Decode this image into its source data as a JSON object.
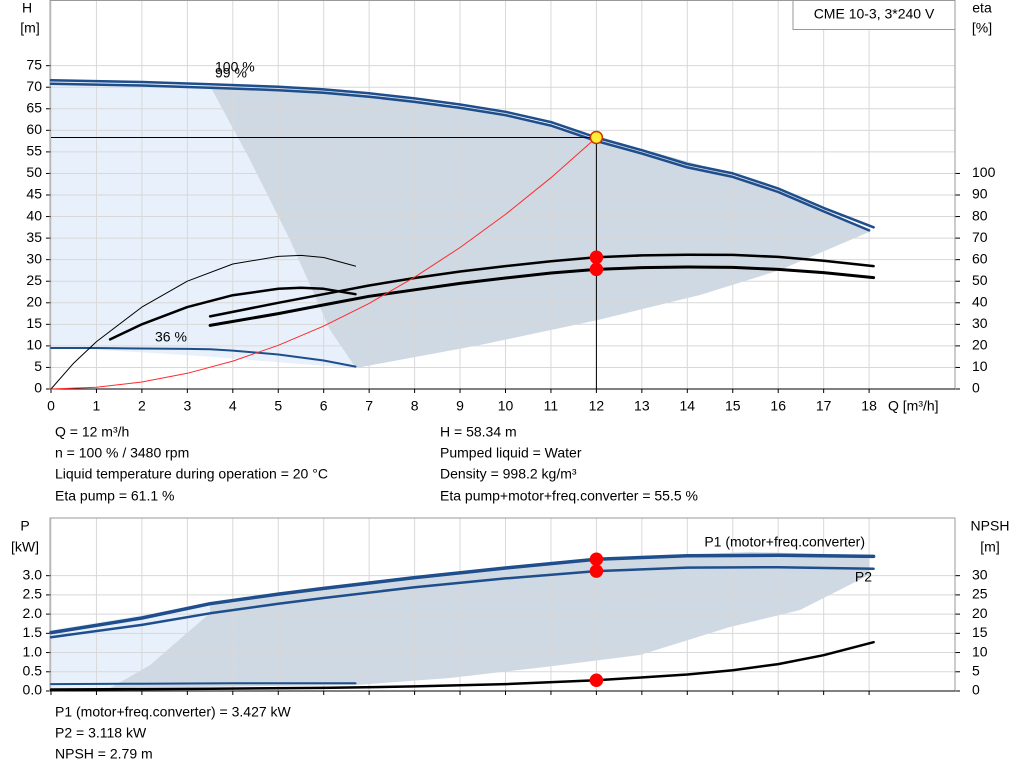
{
  "chart_data": [
    {
      "type": "line",
      "title": "CME 10-3, 3*240 V",
      "ylabel": [
        "H",
        "[m]"
      ],
      "y2label": [
        "eta",
        "[%]"
      ],
      "xlabel": "Q [m³/h]",
      "xlim": [
        0,
        20
      ],
      "xticks": [
        0,
        1,
        2,
        3,
        4,
        5,
        6,
        7,
        8,
        9,
        10,
        11,
        12,
        13,
        14,
        15,
        16,
        17,
        18
      ],
      "ylim": [
        0,
        90
      ],
      "yticks": [
        0,
        5,
        10,
        15,
        20,
        25,
        30,
        35,
        40,
        45,
        50,
        55,
        60,
        65,
        70,
        75
      ],
      "y2lim": [
        0,
        180
      ],
      "y2ticks": [
        0,
        10,
        20,
        30,
        40,
        50,
        60,
        70,
        80,
        90,
        100
      ],
      "grid": true,
      "series": [
        {
          "name": "100 %",
          "color": "#1f4e8c",
          "linewidth": 2.5,
          "x": [
            0,
            2,
            3.5,
            5,
            6,
            7,
            8,
            9,
            10,
            11,
            12,
            13,
            14,
            15,
            16,
            17,
            18.1
          ],
          "values": [
            71.6,
            71.2,
            70.7,
            70.1,
            69.5,
            68.6,
            67.4,
            66.0,
            64.3,
            61.9,
            58.34,
            55.4,
            52.2,
            50.0,
            46.5,
            42.0,
            37.5
          ]
        },
        {
          "name": "99 %",
          "color": "#1f4e8c",
          "linewidth": 2.5,
          "x": [
            0,
            2,
            3.5,
            5,
            6,
            7,
            8,
            9,
            10,
            11,
            12,
            13,
            14,
            15,
            16,
            17,
            18
          ],
          "values": [
            70.8,
            70.4,
            69.9,
            69.3,
            68.7,
            67.8,
            66.6,
            65.2,
            63.5,
            61.1,
            57.5,
            54.6,
            51.4,
            49.2,
            45.7,
            41.2,
            36.8
          ]
        },
        {
          "name": "36 %",
          "color": "#1f4e8c",
          "linewidth": 2,
          "x": [
            0,
            1,
            2,
            3,
            3.5,
            4,
            5,
            6,
            6.7
          ],
          "values": [
            9.5,
            9.5,
            9.4,
            9.3,
            9.2,
            8.9,
            8.0,
            6.6,
            5.2
          ]
        },
        {
          "color": "#000000",
          "linewidth": 2.5,
          "axis": "y2",
          "x": [
            3.5,
            5,
            6,
            7,
            8,
            9,
            10,
            11,
            12,
            13,
            14,
            15,
            16,
            17,
            18.1
          ],
          "values": [
            33.7,
            40,
            44,
            48,
            51.5,
            54.5,
            57,
            59.3,
            61.1,
            62,
            62.3,
            62.2,
            61.3,
            59.5,
            57
          ]
        },
        {
          "color": "#000000",
          "linewidth": 3,
          "axis": "y2",
          "x": [
            3.5,
            5,
            6,
            7,
            8,
            9,
            10,
            11,
            12,
            13,
            14,
            15,
            16,
            17,
            18.1
          ],
          "values": [
            29.5,
            35,
            39,
            43,
            46,
            49,
            51.5,
            53.8,
            55.5,
            56.3,
            56.6,
            56.4,
            55.5,
            54,
            51.7
          ]
        },
        {
          "color": "#000000",
          "linewidth": 1,
          "axis": "y2",
          "x": [
            0,
            0.5,
            1,
            2,
            3,
            4,
            5,
            5.5,
            6,
            6.7
          ],
          "values": [
            0,
            12,
            22,
            38,
            50,
            58,
            61.5,
            62,
            61,
            57
          ]
        },
        {
          "color": "#000000",
          "linewidth": 2.5,
          "axis": "y2",
          "x": [
            1.3,
            2,
            3,
            4,
            5,
            5.5,
            6,
            6.7
          ],
          "values": [
            23,
            30,
            38,
            43.5,
            46.5,
            47,
            46.5,
            44
          ]
        },
        {
          "color": "#ff2a2a",
          "linewidth": 1,
          "x": [
            0,
            1,
            2,
            3,
            4,
            5,
            6,
            7,
            8,
            9,
            10,
            11,
            12
          ],
          "values": [
            0,
            0.41,
            1.62,
            3.65,
            6.48,
            10.13,
            14.59,
            19.85,
            25.93,
            32.82,
            40.51,
            49.02,
            58.34
          ]
        },
        {
          "color": "#ffee33",
          "edgecolor": "#d03000",
          "marker": "dot",
          "guides": true,
          "x": [
            12
          ],
          "values": [
            58.34
          ]
        },
        {
          "color": "#ff0000",
          "marker": "dot",
          "axis": "y2",
          "x": [
            12,
            12
          ],
          "values": [
            61.1,
            55.5
          ]
        }
      ],
      "annotations": [
        "Q = 12 m³/h",
        "n = 100 % / 3480 rpm",
        "Liquid temperature during operation = 20 °C",
        "Eta pump = 61.1 %",
        "H = 58.34 m",
        "Pumped liquid = Water",
        "Density = 998.2 kg/m³",
        "Eta pump+motor+freq.converter = 55.5 %"
      ]
    },
    {
      "type": "line",
      "ylabel": [
        "P",
        "[kW]"
      ],
      "y2label": [
        "NPSH",
        "[m]"
      ],
      "xlim": [
        0,
        20
      ],
      "ylim": [
        0,
        4.5
      ],
      "yticks": [
        {
          "value": 0,
          "label": "0.0"
        },
        0.5,
        {
          "value": 1,
          "label": "1.0"
        },
        1.5,
        {
          "value": 2,
          "label": "2.0"
        },
        2.5,
        {
          "value": 3,
          "label": "3.0"
        }
      ],
      "y2lim": [
        0,
        45
      ],
      "y2ticks": [
        0,
        5,
        10,
        15,
        20,
        25,
        30
      ],
      "grid": true,
      "series": [
        {
          "name": "P1 (motor+freq.converter)",
          "color": "#1f4e8c",
          "linewidth": 3.5,
          "x": [
            0,
            2,
            3.5,
            5,
            6,
            8,
            10,
            12,
            14,
            16,
            18.1
          ],
          "values": [
            1.52,
            1.9,
            2.27,
            2.52,
            2.67,
            2.95,
            3.2,
            3.427,
            3.52,
            3.53,
            3.5
          ]
        },
        {
          "name": "P2",
          "color": "#1f4e8c",
          "linewidth": 2.5,
          "x": [
            0,
            2,
            3.5,
            5,
            6,
            8,
            10,
            12,
            14,
            16,
            18.1
          ],
          "values": [
            1.4,
            1.72,
            2.02,
            2.27,
            2.42,
            2.7,
            2.93,
            3.118,
            3.21,
            3.22,
            3.18
          ]
        },
        {
          "color": "#1f4e8c",
          "linewidth": 2,
          "x": [
            0,
            2,
            4,
            6.7
          ],
          "values": [
            0.18,
            0.19,
            0.2,
            0.2
          ]
        },
        {
          "color": "#000000",
          "linewidth": 2.5,
          "axis": "y2",
          "x": [
            0,
            2,
            3.5,
            6,
            8,
            10,
            12,
            14,
            15,
            16,
            17,
            18.1
          ],
          "values": [
            0.4,
            0.5,
            0.6,
            0.8,
            1.2,
            1.8,
            2.79,
            4.3,
            5.4,
            7,
            9.3,
            12.7
          ]
        },
        {
          "color": "#ff0000",
          "marker": "dot",
          "x": [
            12,
            12
          ],
          "values": [
            3.427,
            3.118
          ]
        },
        {
          "color": "#ff0000",
          "marker": "dot",
          "axis": "y2",
          "x": [
            12
          ],
          "values": [
            2.79
          ]
        }
      ],
      "annotations": [
        "P1 (motor+freq.converter) = 3.427 kW",
        "P2 = 3.118 kW",
        "NPSH = 2.79 m"
      ]
    }
  ]
}
